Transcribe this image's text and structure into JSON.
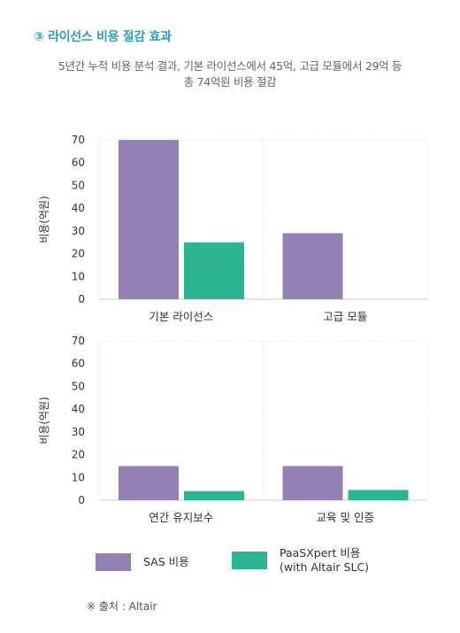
{
  "heading": "③ 라이선스 비용 절감 효과",
  "subtitle": [
    "5년간 누적 비용 분석 결과, 기본 라이선스에서 45억, 고급 모듈에서 29억 등",
    "총 74억원 비용 절감"
  ],
  "colors": {
    "sas": "#9580b4",
    "paas": "#2bb592",
    "heading": "#2a9fbe"
  },
  "chart_data": [
    {
      "type": "bar",
      "ylabel": "비용(억원)",
      "ylim": [
        0,
        70
      ],
      "yticks": [
        0,
        10,
        20,
        30,
        40,
        50,
        60,
        70
      ],
      "categories": [
        "기본 라이선스",
        "고급 모듈"
      ],
      "series": [
        {
          "name": "SAS 비용",
          "values": [
            70,
            29
          ]
        },
        {
          "name": "PaaSXpert 비용\n(with Altair SLC)",
          "values": [
            25,
            0
          ]
        }
      ]
    },
    {
      "type": "bar",
      "ylabel": "비용(억원)",
      "ylim": [
        0,
        70
      ],
      "yticks": [
        0,
        10,
        20,
        30,
        40,
        50,
        60,
        70
      ],
      "categories": [
        "연간 유지보수",
        "교육 및 인증"
      ],
      "series": [
        {
          "name": "SAS 비용",
          "values": [
            15,
            15
          ]
        },
        {
          "name": "PaaSXpert 비용\n(with Altair SLC)",
          "values": [
            4,
            4.5
          ]
        }
      ]
    }
  ],
  "legend": [
    {
      "label": "SAS 비용",
      "color": "#9580b4"
    },
    {
      "label": "PaaSXpert 비용\n(with Altair SLC)",
      "color": "#2bb592"
    }
  ],
  "source": "※ 출처 : Altair"
}
